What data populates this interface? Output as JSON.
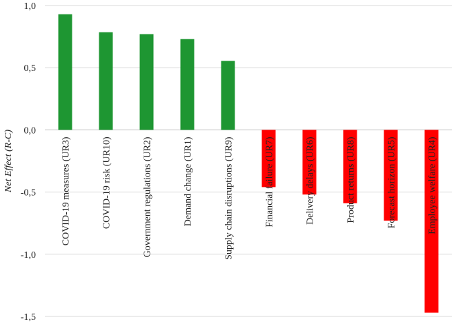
{
  "chart_data": {
    "type": "bar",
    "categories": [
      "COVID-19 measures (UR3)",
      "COVID-19 risk (UR10)",
      "Government regulations (UR2)",
      "Demand change (UR1)",
      "Supply chain disruptions (UR9)",
      "Financial failure (UR7)",
      "Delivery delays (UR6)",
      "Product returns (UR8)",
      "Forecast horizon (UR5)",
      "Employee welfare (UR4)"
    ],
    "values": [
      0.93,
      0.785,
      0.77,
      0.73,
      0.555,
      -0.46,
      -0.52,
      -0.59,
      -0.73,
      -1.47
    ],
    "ylabel": "Net  Effect (R-C)",
    "xlabel": "",
    "ylim": [
      -1.5,
      1.0
    ],
    "yticks": [
      "1,0",
      "0,5",
      "0,0",
      "-0,5",
      "-1,0",
      "-1,5"
    ],
    "grid": true,
    "colors": {
      "positive": "#1e9632",
      "negative": "#ff0000"
    }
  }
}
